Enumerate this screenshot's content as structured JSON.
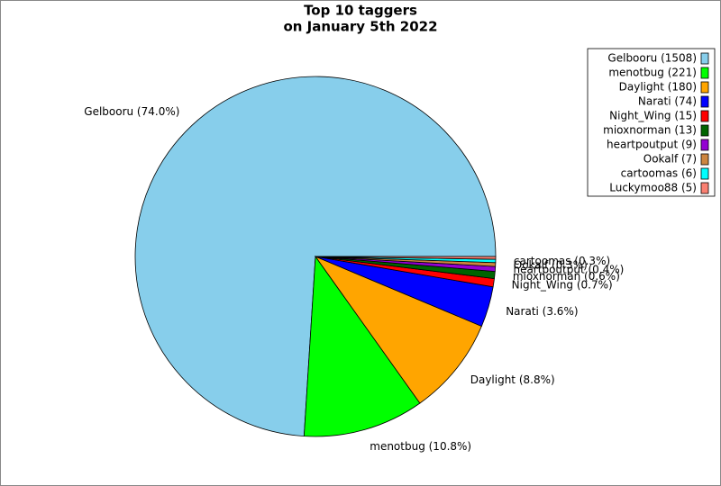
{
  "chart_data": {
    "type": "pie",
    "title": [
      "Top 10 taggers",
      "on January 5th 2022"
    ],
    "categories": [
      "Gelbooru",
      "menotbug",
      "Daylight",
      "Narati",
      "Night_Wing",
      "mioxnorman",
      "heartpoutput",
      "Ookalf",
      "cartoomas",
      "Luckymoo88"
    ],
    "values": [
      1508,
      221,
      180,
      74,
      15,
      13,
      9,
      7,
      6,
      5
    ],
    "legend_labels": [
      "Gelbooru (1508)",
      "menotbug (221)",
      "Daylight (180)",
      "Narati (74)",
      "Night_Wing (15)",
      "mioxnorman (13)",
      "heartpoutput (9)",
      "Ookalf (7)",
      "cartoomas (6)",
      "Luckymoo88 (5)"
    ],
    "value_labels": [
      "Gelbooru (74.0%)",
      "menotbug (10.8%)",
      "Daylight (8.8%)",
      "Narati (3.6%)",
      "Night_Wing (0.7%)",
      "mioxnorman (0.6%)",
      "heartpoutput (0.4%)",
      "Ookalf (0.3%)",
      "cartoomas (0.3%)",
      null
    ],
    "colors": [
      "#87ceeb",
      "#00ff00",
      "#ffa500",
      "#0000ff",
      "#ff0000",
      "#006400",
      "#9400d3",
      "#cd853f",
      "#00ffff",
      "#fa8072"
    ],
    "legend": "upper right"
  }
}
